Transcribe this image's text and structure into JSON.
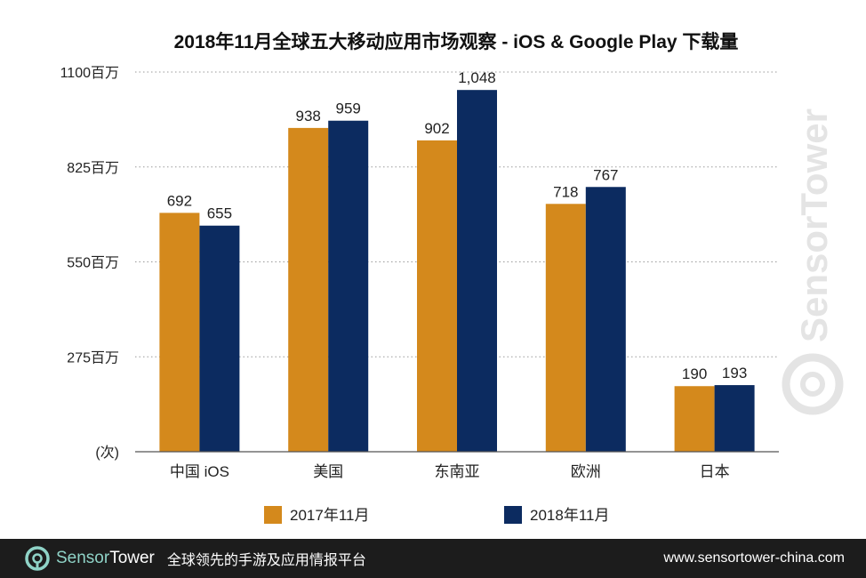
{
  "chart_data": {
    "type": "bar",
    "title": "2018年11月全球五大移动应用市场观察 - iOS & Google Play 下载量",
    "categories": [
      "中国 iOS",
      "美国",
      "东南亚",
      "欧洲",
      "日本"
    ],
    "series": [
      {
        "name": "2017年11月",
        "color": "#d4891c",
        "values": [
          692,
          938,
          902,
          718,
          190
        ],
        "labels": [
          "692",
          "938",
          "902",
          "718",
          "190"
        ]
      },
      {
        "name": "2018年11月",
        "color": "#0c2b60",
        "values": [
          655,
          959,
          1048,
          767,
          193
        ],
        "labels": [
          "655",
          "959",
          "1,048",
          "767",
          "193"
        ]
      }
    ],
    "ylim": [
      0,
      1100
    ],
    "yticks": [
      {
        "value": 275,
        "label": "275百万"
      },
      {
        "value": 550,
        "label": "550百万"
      },
      {
        "value": 825,
        "label": "825百万"
      },
      {
        "value": 1100,
        "label": "1100百万"
      }
    ],
    "yunit": "(次)",
    "grid": true,
    "legend_position": "bottom"
  },
  "watermark": {
    "text": "SensorTower"
  },
  "footer": {
    "brand_part1": "Sensor",
    "brand_part2": "Tower",
    "tagline": "全球领先的手游及应用情报平台",
    "url": "www.sensortower-china.com",
    "bg_color": "#1c1c1c",
    "accent_color": "#8fd3c7"
  }
}
